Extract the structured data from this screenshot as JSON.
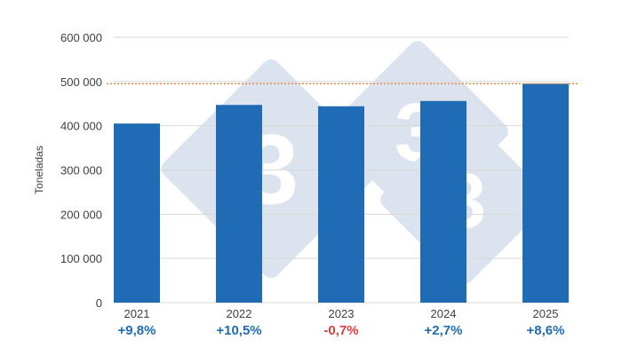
{
  "chart_data": {
    "type": "bar",
    "categories": [
      "2021",
      "2022",
      "2023",
      "2024",
      "2025"
    ],
    "values": [
      405000,
      447000,
      444000,
      456000,
      495000
    ],
    "growth_labels": [
      "+9,8%",
      "+10,5%",
      "-0,7%",
      "+2,7%",
      "+8,6%"
    ],
    "growth_colors": [
      "#1f6cb4",
      "#1f6cb4",
      "#e03c3c",
      "#1f6cb4",
      "#1f6cb4"
    ],
    "ylabel": "Toneladas",
    "ylim": [
      0,
      600000
    ],
    "yticks": [
      0,
      100000,
      200000,
      300000,
      400000,
      500000,
      600000
    ],
    "ytick_labels": [
      "0",
      "100 000",
      "200 000",
      "300 000",
      "400 000",
      "500 000",
      "600 000"
    ],
    "reference_line": 495000,
    "grid": true,
    "colors": {
      "bar": "#1f6cb4",
      "grid": "#d9d9d9",
      "reference_line": "#e8823a",
      "watermark": "#dbe3ee",
      "watermark_text": "#ffffff"
    },
    "watermark_text": "3"
  }
}
